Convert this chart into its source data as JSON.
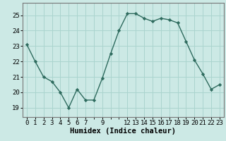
{
  "x": [
    0,
    1,
    2,
    3,
    4,
    5,
    6,
    7,
    8,
    9,
    10,
    11,
    12,
    13,
    14,
    15,
    16,
    17,
    18,
    19,
    20,
    21,
    22,
    23
  ],
  "y": [
    23.1,
    22.0,
    21.0,
    20.7,
    20.0,
    19.0,
    20.2,
    19.5,
    19.5,
    20.9,
    22.5,
    24.0,
    25.1,
    25.1,
    24.8,
    24.6,
    24.8,
    24.7,
    24.5,
    23.3,
    22.1,
    21.2,
    20.2,
    20.5
  ],
  "yticks": [
    19,
    20,
    21,
    22,
    23,
    24,
    25
  ],
  "ylim": [
    18.4,
    25.8
  ],
  "xlim": [
    -0.5,
    23.5
  ],
  "xlabel": "Humidex (Indice chaleur)",
  "line_color": "#2e6b5e",
  "marker": "D",
  "marker_size": 2.2,
  "bg_color": "#cce9e5",
  "grid_color": "#aad4ce",
  "xlabel_fontsize": 7.5,
  "tick_fontsize": 6.5,
  "linewidth": 1.0
}
